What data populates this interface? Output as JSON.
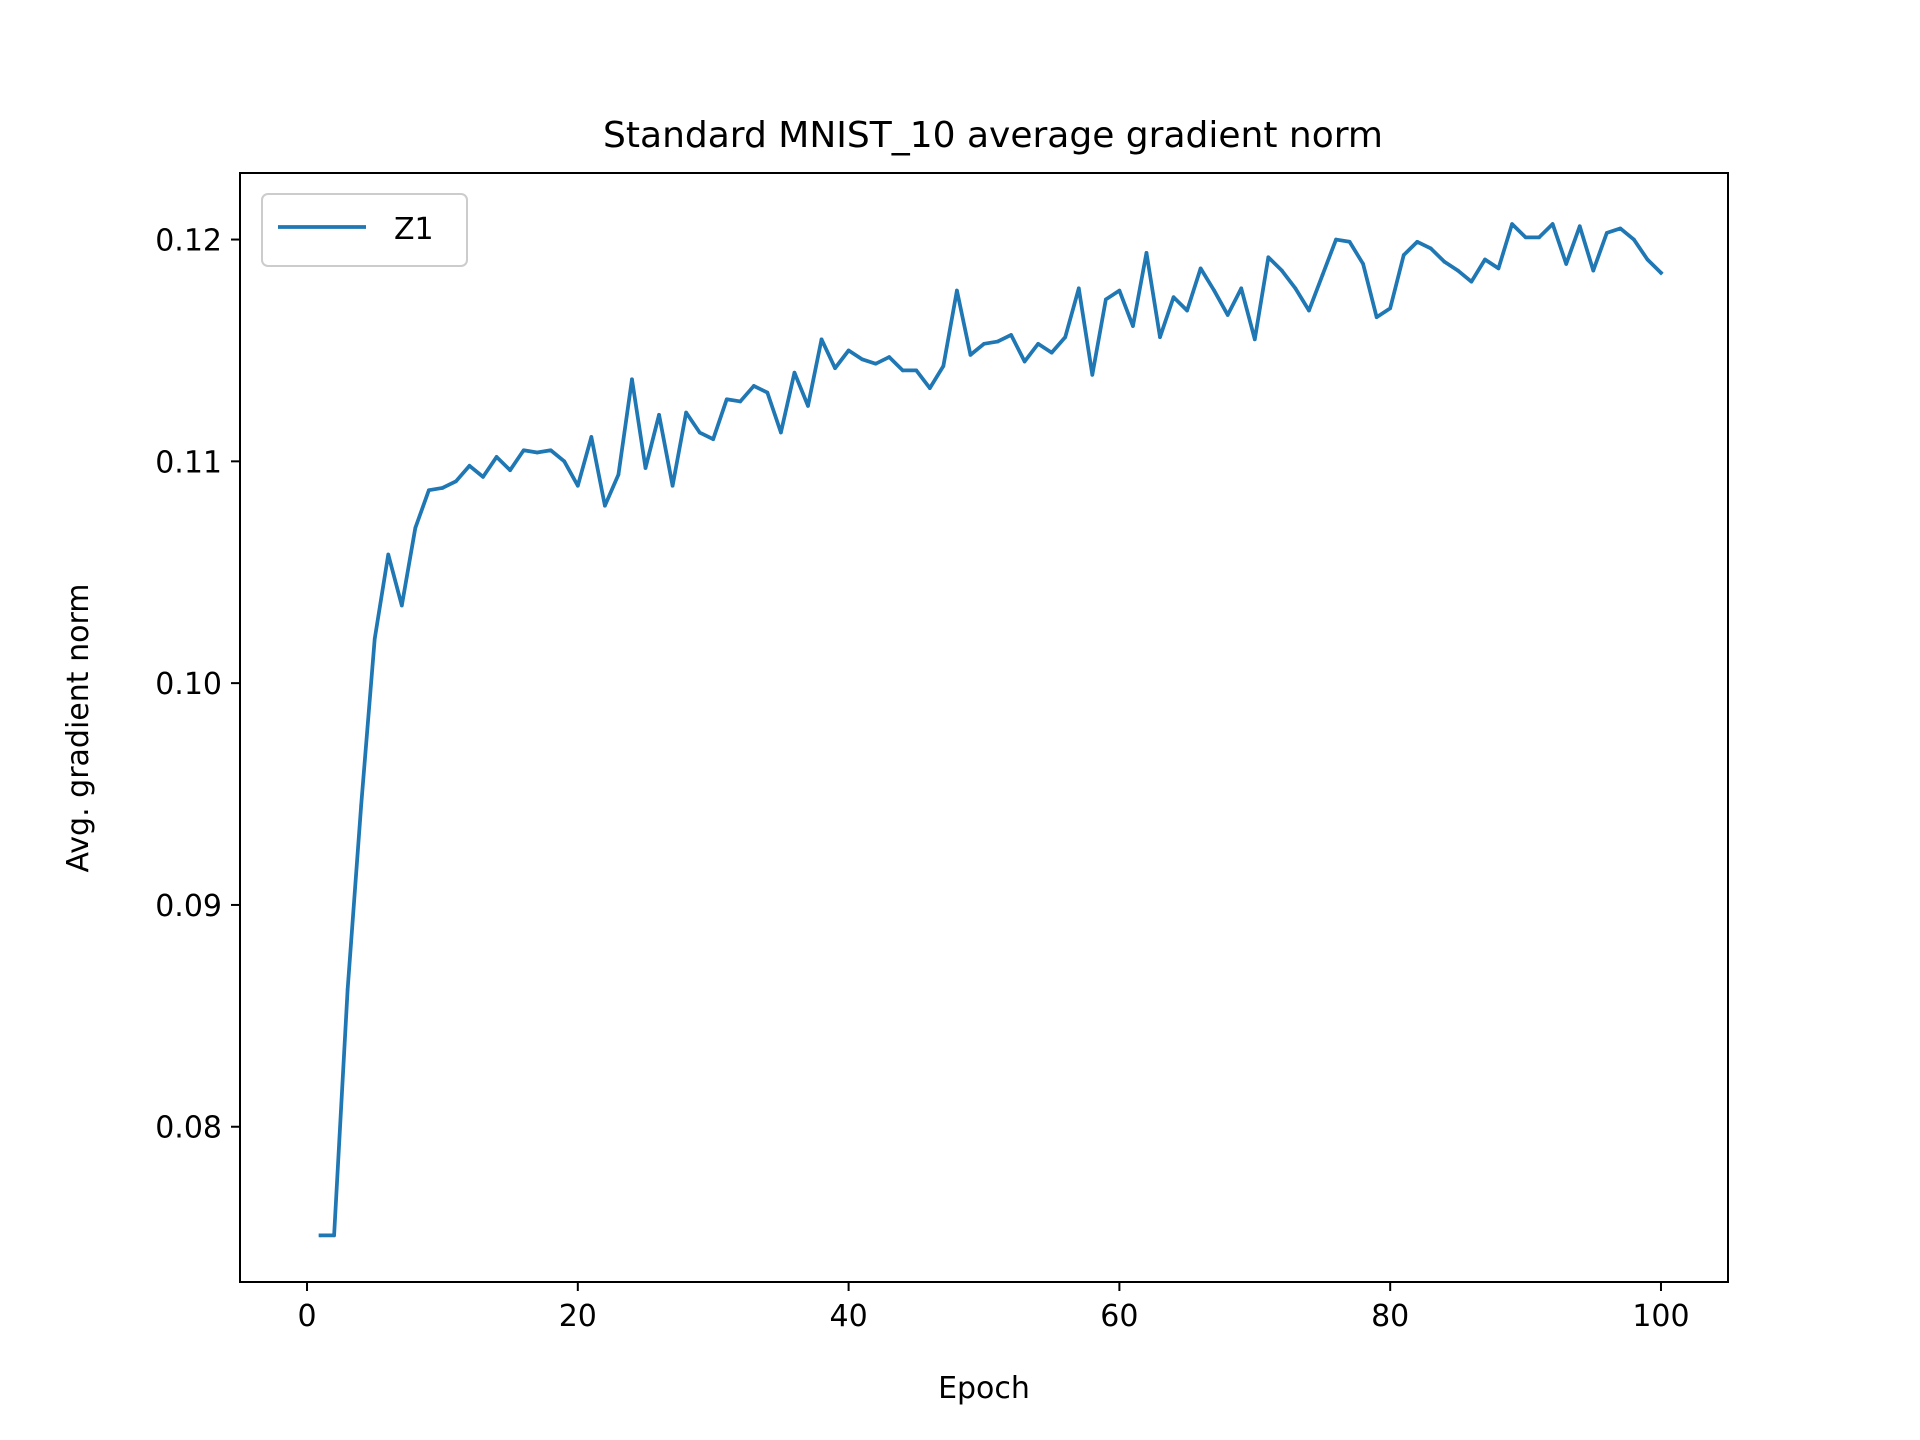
{
  "chart_data": {
    "type": "line",
    "title": "Standard MNIST_10 average gradient norm",
    "xlabel": "Epoch",
    "ylabel": "Avg. gradient norm",
    "xlim": [
      -4.95,
      104.95
    ],
    "ylim": [
      0.073,
      0.123
    ],
    "xticks": [
      0,
      20,
      40,
      60,
      80,
      100
    ],
    "xtick_labels": [
      "0",
      "20",
      "40",
      "60",
      "80",
      "100"
    ],
    "yticks": [
      0.08,
      0.09,
      0.1,
      0.11,
      0.12
    ],
    "ytick_labels": [
      "0.08",
      "0.09",
      "0.10",
      "0.11",
      "0.12"
    ],
    "grid": false,
    "legend_position": "top-left",
    "series": [
      {
        "name": "Z1",
        "color": "#1f77b4",
        "x": [
          1,
          2,
          3,
          4,
          5,
          6,
          7,
          8,
          9,
          10,
          11,
          12,
          13,
          14,
          15,
          16,
          17,
          18,
          19,
          20,
          21,
          22,
          23,
          24,
          25,
          26,
          27,
          28,
          29,
          30,
          31,
          32,
          33,
          34,
          35,
          36,
          37,
          38,
          39,
          40,
          41,
          42,
          43,
          44,
          45,
          46,
          47,
          48,
          49,
          50,
          51,
          52,
          53,
          54,
          55,
          56,
          57,
          58,
          59,
          60,
          61,
          62,
          63,
          64,
          65,
          66,
          67,
          68,
          69,
          70,
          71,
          72,
          73,
          74,
          75,
          76,
          77,
          78,
          79,
          80,
          81,
          82,
          83,
          84,
          85,
          86,
          87,
          88,
          89,
          90,
          91,
          92,
          93,
          94,
          95,
          96,
          97,
          98,
          99,
          100
        ],
        "y": [
          0.0751,
          0.0751,
          0.0862,
          0.0945,
          0.102,
          0.1058,
          0.1035,
          0.107,
          0.1087,
          0.1088,
          0.1091,
          0.1098,
          0.1093,
          0.1102,
          0.1096,
          0.1105,
          0.1104,
          0.1105,
          0.11,
          0.1089,
          0.1111,
          0.108,
          0.1094,
          0.1137,
          0.1097,
          0.1121,
          0.1089,
          0.1122,
          0.1113,
          0.111,
          0.1128,
          0.1127,
          0.1134,
          0.1131,
          0.1113,
          0.114,
          0.1125,
          0.1155,
          0.1142,
          0.115,
          0.1146,
          0.1144,
          0.1147,
          0.1141,
          0.1141,
          0.1133,
          0.1143,
          0.1177,
          0.1148,
          0.1153,
          0.1154,
          0.1157,
          0.1145,
          0.1153,
          0.1149,
          0.1156,
          0.1178,
          0.1139,
          0.1173,
          0.1177,
          0.1161,
          0.1194,
          0.1156,
          0.1174,
          0.1168,
          0.1187,
          0.1177,
          0.1166,
          0.1178,
          0.1155,
          0.1192,
          0.1186,
          0.1178,
          0.1168,
          0.1184,
          0.12,
          0.1199,
          0.1189,
          0.1165,
          0.1169,
          0.1193,
          0.1199,
          0.1196,
          0.119,
          0.1186,
          0.1181,
          0.1191,
          0.1187,
          0.1207,
          0.1201,
          0.1201,
          0.1207,
          0.1189,
          0.1206,
          0.1186,
          0.1203,
          0.1205,
          0.12,
          0.1191,
          0.1185
        ]
      }
    ]
  }
}
